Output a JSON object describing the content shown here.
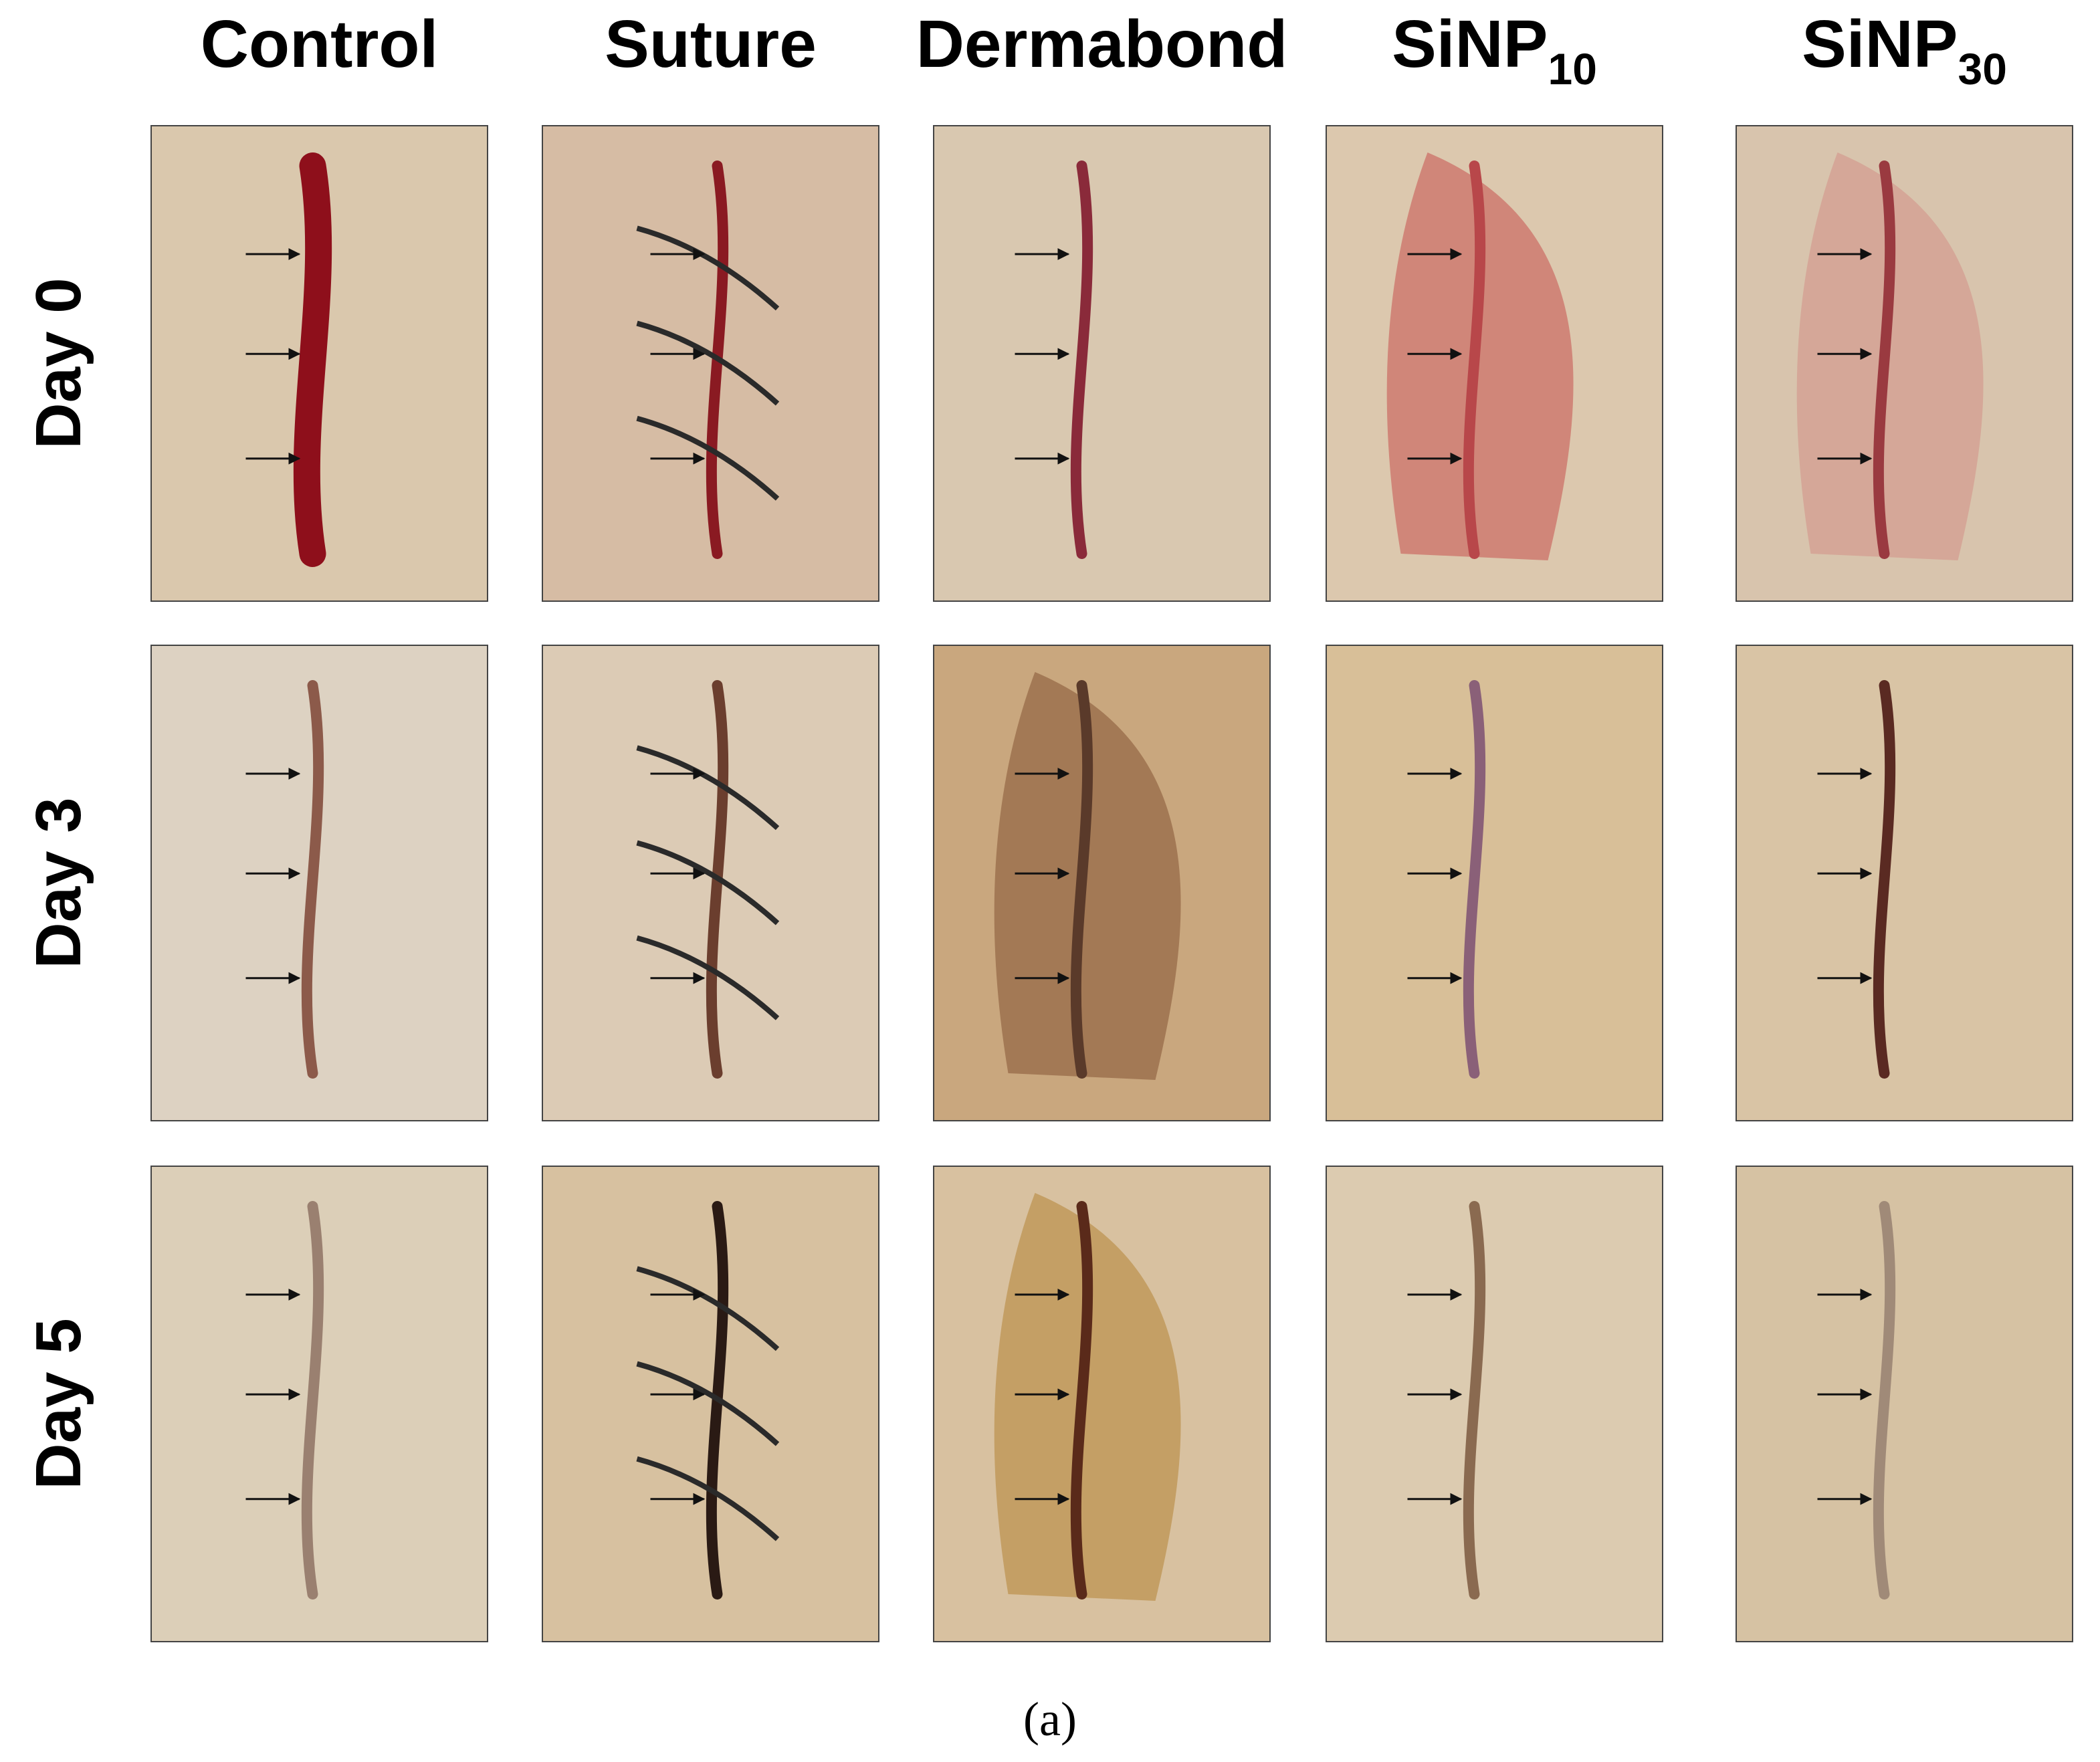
{
  "columns": [
    {
      "label": "Control"
    },
    {
      "label": "Suture"
    },
    {
      "label": "Dermabond"
    },
    {
      "label": "SiNP",
      "sub": "10"
    },
    {
      "label": "SiNP",
      "sub": "30"
    }
  ],
  "rows": [
    "Day 0",
    "Day 3",
    "Day 5"
  ],
  "caption": "(a)"
}
